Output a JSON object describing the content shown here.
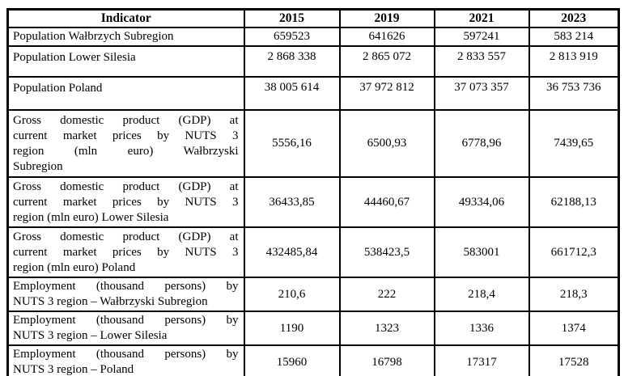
{
  "table": {
    "columns": [
      "Indicator",
      "2015",
      "2019",
      "2021",
      "2023"
    ],
    "rows": [
      {
        "indicator": "Population Wałbrzych Subregion",
        "values": [
          "659523",
          "641626",
          "597241",
          "583 214"
        ]
      },
      {
        "indicator": "Population Lower Silesia",
        "values": [
          "2 868 338",
          "2 865 072",
          "2 833 557",
          "2 813 919"
        ]
      },
      {
        "indicator": "Population Poland",
        "values": [
          "38 005 614",
          "37 972 812",
          "37 073 357",
          "36 753 736"
        ]
      },
      {
        "indicator": "Gross domestic product (GDP) at\ncurrent market prices by NUTS 3\nregion (mln euro) Wałbrzyski\nSubregion",
        "values": [
          "5556,16",
          "6500,93",
          "6778,96",
          "7439,65"
        ]
      },
      {
        "indicator": "Gross domestic product (GDP) at\ncurrent market prices by NUTS 3\nregion (mln euro) Lower Silesia",
        "values": [
          "36433,85",
          "44460,67",
          "49334,06",
          "62188,13"
        ]
      },
      {
        "indicator": "Gross domestic product (GDP) at\ncurrent market prices by NUTS 3\nregion (mln euro) Poland",
        "values": [
          "432485,84",
          "538423,5",
          "583001",
          "661712,3"
        ]
      },
      {
        "indicator": "Employment (thousand persons) by\nNUTS 3 region – Wałbrzyski Subregion",
        "values": [
          "210,6",
          "222",
          "218,4",
          "218,3"
        ]
      },
      {
        "indicator": "Employment (thousand persons) by\nNUTS 3 region – Lower Silesia",
        "values": [
          "1190",
          "1323",
          "1336",
          "1374"
        ]
      },
      {
        "indicator": "Employment (thousand persons) by\nNUTS 3 region – Poland",
        "values": [
          "15960",
          "16798",
          "17317",
          "17528"
        ]
      }
    ]
  }
}
